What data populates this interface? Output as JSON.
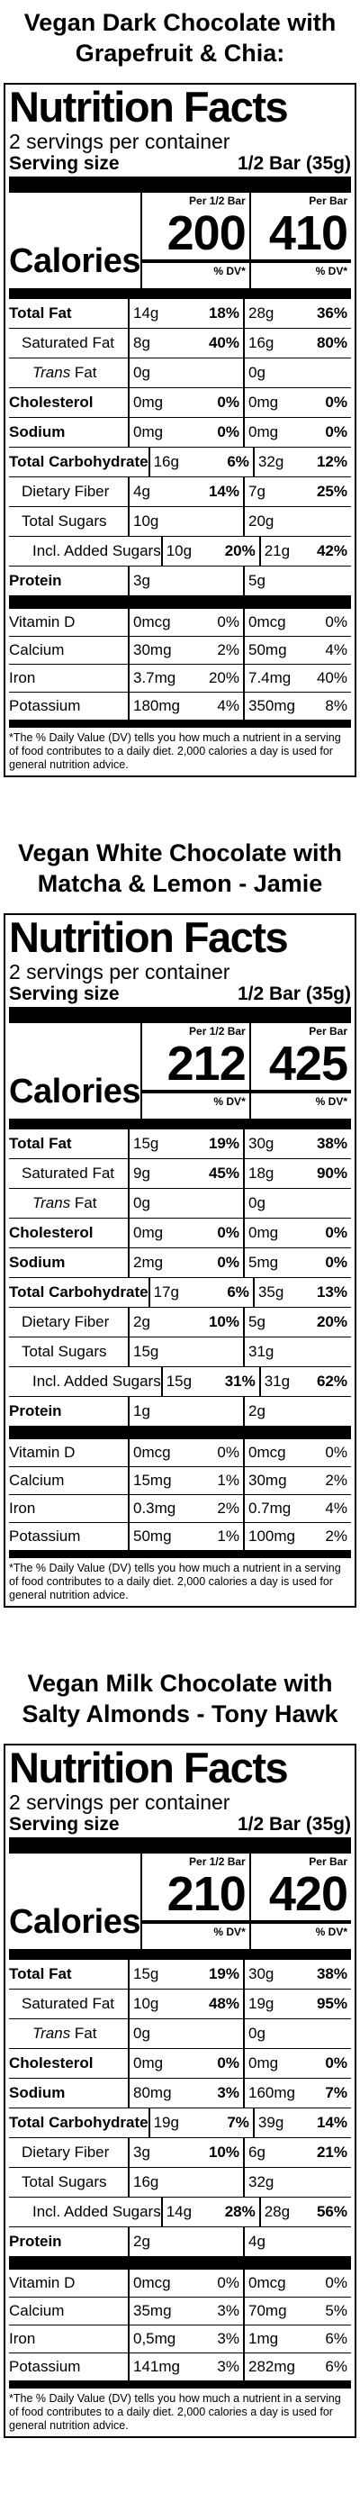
{
  "products": [
    {
      "title_line1": "Vegan Dark Chocolate with",
      "title_line2": "Grapefruit & Chia:",
      "nf_title": "Nutrition Facts",
      "servings": "2 servings per container",
      "serving_size_label": "Serving size",
      "serving_size_value": "1/2 Bar (35g)",
      "calories_label": "Calories",
      "col1_head": "Per 1/2 Bar",
      "col2_head": "Per Bar",
      "dv_head": "% DV*",
      "calories1": "200",
      "calories2": "410",
      "nutrients": [
        {
          "name": "Total Fat",
          "a1": "14g",
          "p1": "18%",
          "a2": "28g",
          "p2": "36%"
        },
        {
          "name": "Saturated Fat",
          "a1": "8g",
          "p1": "40%",
          "a2": "16g",
          "p2": "80%"
        },
        {
          "name": "Trans",
          "suffix": " Fat",
          "a1": "0g",
          "p1": "",
          "a2": "0g",
          "p2": ""
        },
        {
          "name": "Cholesterol",
          "a1": "0mg",
          "p1": "0%",
          "a2": "0mg",
          "p2": "0%"
        },
        {
          "name": "Sodium",
          "a1": "0mg",
          "p1": "0%",
          "a2": "0mg",
          "p2": "0%"
        },
        {
          "name": "Total Carbohydrate",
          "a1": "16g",
          "p1": "6%",
          "a2": "32g",
          "p2": "12%"
        },
        {
          "name": "Dietary Fiber",
          "a1": "4g",
          "p1": "14%",
          "a2": "7g",
          "p2": "25%"
        },
        {
          "name": "Total Sugars",
          "a1": "10g",
          "p1": "",
          "a2": "20g",
          "p2": ""
        },
        {
          "name": "Incl. Added Sugars",
          "a1": "10g",
          "p1": "20%",
          "a2": "21g",
          "p2": "42%"
        },
        {
          "name": "Protein",
          "a1": "3g",
          "p1": "",
          "a2": "5g",
          "p2": ""
        }
      ],
      "vitamins": [
        {
          "name": "Vitamin D",
          "a1": "0mcg",
          "p1": "0%",
          "a2": "0mcg",
          "p2": "0%"
        },
        {
          "name": "Calcium",
          "a1": "30mg",
          "p1": "2%",
          "a2": "50mg",
          "p2": "4%"
        },
        {
          "name": "Iron",
          "a1": "3.7mg",
          "p1": "20%",
          "a2": "7.4mg",
          "p2": "40%"
        },
        {
          "name": "Potassium",
          "a1": "180mg",
          "p1": "4%",
          "a2": "350mg",
          "p2": "8%"
        }
      ],
      "footnote": "*The % Daily Value (DV) tells you how much a nutrient in a serving of food contributes to a daily diet. 2,000 calories a day is used for general nutrition advice."
    },
    {
      "title_line1": "Vegan White Chocolate with",
      "title_line2": "Matcha & Lemon - Jamie",
      "nf_title": "Nutrition Facts",
      "servings": "2 servings per container",
      "serving_size_label": "Serving size",
      "serving_size_value": "1/2 Bar (35g)",
      "calories_label": "Calories",
      "col1_head": "Per 1/2 Bar",
      "col2_head": "Per Bar",
      "dv_head": "% DV*",
      "calories1": "212",
      "calories2": "425",
      "nutrients": [
        {
          "name": "Total Fat",
          "a1": "15g",
          "p1": "19%",
          "a2": "30g",
          "p2": "38%"
        },
        {
          "name": "Saturated Fat",
          "a1": "9g",
          "p1": "45%",
          "a2": "18g",
          "p2": "90%"
        },
        {
          "name": "Trans",
          "suffix": " Fat",
          "a1": "0g",
          "p1": "",
          "a2": "0g",
          "p2": ""
        },
        {
          "name": "Cholesterol",
          "a1": "0mg",
          "p1": "0%",
          "a2": "0mg",
          "p2": "0%"
        },
        {
          "name": "Sodium",
          "a1": "2mg",
          "p1": "0%",
          "a2": "5mg",
          "p2": "0%"
        },
        {
          "name": "Total Carbohydrate",
          "a1": "17g",
          "p1": "6%",
          "a2": "35g",
          "p2": "13%"
        },
        {
          "name": "Dietary Fiber",
          "a1": "2g",
          "p1": "10%",
          "a2": "5g",
          "p2": "20%"
        },
        {
          "name": "Total Sugars",
          "a1": "15g",
          "p1": "",
          "a2": "31g",
          "p2": ""
        },
        {
          "name": "Incl. Added Sugars",
          "a1": "15g",
          "p1": "31%",
          "a2": "31g",
          "p2": "62%"
        },
        {
          "name": "Protein",
          "a1": "1g",
          "p1": "",
          "a2": "2g",
          "p2": ""
        }
      ],
      "vitamins": [
        {
          "name": "Vitamin D",
          "a1": "0mcg",
          "p1": "0%",
          "a2": "0mcg",
          "p2": "0%"
        },
        {
          "name": "Calcium",
          "a1": "15mg",
          "p1": "1%",
          "a2": "30mg",
          "p2": "2%"
        },
        {
          "name": "Iron",
          "a1": "0.3mg",
          "p1": "2%",
          "a2": "0.7mg",
          "p2": "4%"
        },
        {
          "name": "Potassium",
          "a1": "50mg",
          "p1": "1%",
          "a2": "100mg",
          "p2": "2%"
        }
      ],
      "footnote": "*The % Daily Value (DV) tells you how much a nutrient in a serving of food contributes to a daily diet. 2,000 calories a day is used for general nutrition advice."
    },
    {
      "title_line1": "Vegan Milk Chocolate with",
      "title_line2": "Salty Almonds - Tony Hawk",
      "nf_title": "Nutrition Facts",
      "servings": "2 servings per container",
      "serving_size_label": "Serving size",
      "serving_size_value": "1/2 Bar (35g)",
      "calories_label": "Calories",
      "col1_head": "Per 1/2 Bar",
      "col2_head": "Per Bar",
      "dv_head": "% DV*",
      "calories1": "210",
      "calories2": "420",
      "nutrients": [
        {
          "name": "Total Fat",
          "a1": "15g",
          "p1": "19%",
          "a2": "30g",
          "p2": "38%"
        },
        {
          "name": "Saturated Fat",
          "a1": "10g",
          "p1": "48%",
          "a2": "19g",
          "p2": "95%"
        },
        {
          "name": "Trans",
          "suffix": " Fat",
          "a1": "0g",
          "p1": "",
          "a2": "0g",
          "p2": ""
        },
        {
          "name": "Cholesterol",
          "a1": "0mg",
          "p1": "0%",
          "a2": "0mg",
          "p2": "0%"
        },
        {
          "name": "Sodium",
          "a1": "80mg",
          "p1": "3%",
          "a2": "160mg",
          "p2": "7%"
        },
        {
          "name": "Total Carbohydrate",
          "a1": "19g",
          "p1": "7%",
          "a2": "39g",
          "p2": "14%"
        },
        {
          "name": "Dietary Fiber",
          "a1": "3g",
          "p1": "10%",
          "a2": "6g",
          "p2": "21%"
        },
        {
          "name": "Total Sugars",
          "a1": "16g",
          "p1": "",
          "a2": "32g",
          "p2": ""
        },
        {
          "name": "Incl. Added Sugars",
          "a1": "14g",
          "p1": "28%",
          "a2": "28g",
          "p2": "56%"
        },
        {
          "name": "Protein",
          "a1": "2g",
          "p1": "",
          "a2": "4g",
          "p2": ""
        }
      ],
      "vitamins": [
        {
          "name": "Vitamin D",
          "a1": "0mcg",
          "p1": "0%",
          "a2": "0mcg",
          "p2": "0%"
        },
        {
          "name": "Calcium",
          "a1": "35mg",
          "p1": "3%",
          "a2": "70mg",
          "p2": "5%"
        },
        {
          "name": "Iron",
          "a1": "0,5mg",
          "p1": "3%",
          "a2": "1mg",
          "p2": "6%"
        },
        {
          "name": "Potassium",
          "a1": "141mg",
          "p1": "3%",
          "a2": "282mg",
          "p2": "6%"
        }
      ],
      "footnote": "*The % Daily Value (DV) tells you how much a nutrient in a serving of food contributes to a daily diet. 2,000 calories a day is used for general nutrition advice."
    }
  ]
}
